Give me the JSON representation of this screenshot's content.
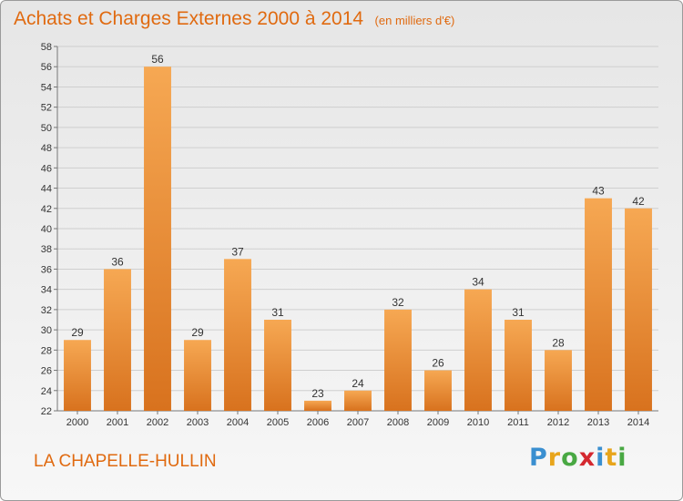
{
  "header": {
    "title": "Achats et Charges Externes 2000 à 2014",
    "unit": "(en milliers d'€)"
  },
  "footer": {
    "city": "LA CHAPELLE-HULLIN",
    "logo_letters": [
      "P",
      "r",
      "o",
      "x",
      "i",
      "t",
      "i"
    ],
    "logo_colors": [
      "#3a8fd0",
      "#e8a51c",
      "#49a843",
      "#d4282f",
      "#3a8fd0",
      "#e8a51c",
      "#49a843"
    ]
  },
  "colors": {
    "accent": "#e06a10",
    "bar_top": "#f6a853",
    "bar_bottom": "#d8721e",
    "grid": "#cfcfcf"
  },
  "chart_data": {
    "type": "bar",
    "title": "Achats et Charges Externes 2000 à 2014",
    "subtitle": "(en milliers d'€)",
    "categories": [
      "2000",
      "2001",
      "2002",
      "2003",
      "2004",
      "2005",
      "2006",
      "2007",
      "2008",
      "2009",
      "2010",
      "2011",
      "2012",
      "2013",
      "2014"
    ],
    "values": [
      29,
      36,
      56,
      29,
      37,
      31,
      23,
      24,
      32,
      26,
      34,
      31,
      28,
      43,
      42
    ],
    "ylim": [
      22,
      58
    ],
    "yticks": [
      22,
      24,
      26,
      28,
      30,
      32,
      34,
      36,
      38,
      40,
      42,
      44,
      46,
      48,
      50,
      52,
      54,
      56,
      58
    ],
    "xlabel": "",
    "ylabel": "",
    "grid": true,
    "legend": "none"
  }
}
